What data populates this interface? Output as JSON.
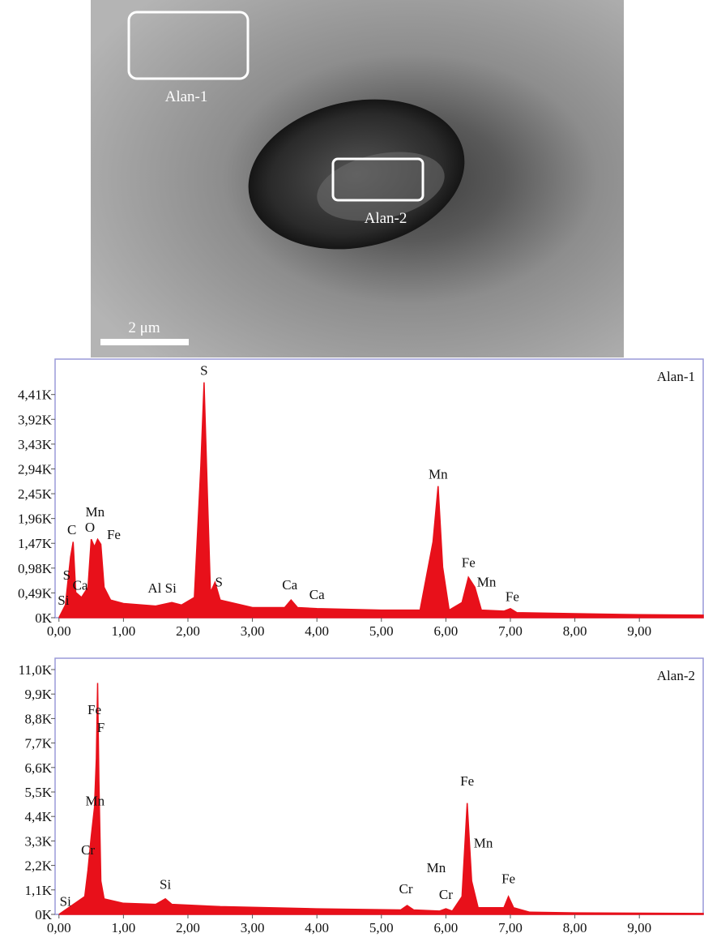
{
  "image": {
    "regions": [
      {
        "label": "Alan-1"
      },
      {
        "label": "Alan-2"
      }
    ],
    "scale_bar": "2 μm"
  },
  "chart_data": [
    {
      "type": "area",
      "label": "Alan-1",
      "color": "#e8101a",
      "x": [
        0,
        0.1,
        0.18,
        0.22,
        0.26,
        0.35,
        0.45,
        0.5,
        0.55,
        0.6,
        0.65,
        0.7,
        0.8,
        1.0,
        1.5,
        1.75,
        1.9,
        2.1,
        2.2,
        2.25,
        2.3,
        2.35,
        2.42,
        2.5,
        3.0,
        3.5,
        3.6,
        3.7,
        4.0,
        5.0,
        5.6,
        5.8,
        5.88,
        5.95,
        6.05,
        6.25,
        6.35,
        6.45,
        6.55,
        6.9,
        7.0,
        7.1,
        8.0,
        9.0,
        9.99
      ],
      "values": [
        0,
        250,
        1200,
        1500,
        500,
        400,
        600,
        1550,
        1400,
        1550,
        1450,
        600,
        350,
        280,
        230,
        300,
        250,
        400,
        3000,
        4650,
        2500,
        500,
        700,
        350,
        200,
        200,
        350,
        200,
        180,
        150,
        150,
        1500,
        2600,
        1000,
        150,
        300,
        800,
        600,
        150,
        130,
        180,
        100,
        80,
        60,
        50
      ],
      "xlim": [
        -0.06,
        9.99
      ],
      "ylim": [
        0,
        5110
      ],
      "xticks": [
        {
          "value": 0,
          "label": "0,00"
        },
        {
          "value": 1,
          "label": "1,00"
        },
        {
          "value": 2,
          "label": "2,00"
        },
        {
          "value": 3,
          "label": "3,00"
        },
        {
          "value": 4,
          "label": "4,00"
        },
        {
          "value": 5,
          "label": "5,00"
        },
        {
          "value": 6,
          "label": "6,00"
        },
        {
          "value": 7,
          "label": "7,00"
        },
        {
          "value": 8,
          "label": "8,00"
        },
        {
          "value": 9,
          "label": "9,00"
        }
      ],
      "yticks": [
        {
          "value": 0,
          "label": "0K"
        },
        {
          "value": 490,
          "label": "0,49K"
        },
        {
          "value": 980,
          "label": "0,98K"
        },
        {
          "value": 1470,
          "label": "1,47K"
        },
        {
          "value": 1960,
          "label": "1,96K"
        },
        {
          "value": 2450,
          "label": "2,45K"
        },
        {
          "value": 2940,
          "label": "2,94K"
        },
        {
          "value": 3430,
          "label": "3,43K"
        },
        {
          "value": 3920,
          "label": "3,92K"
        },
        {
          "value": 4410,
          "label": "4,41K"
        }
      ],
      "annotations": [
        {
          "text": "S",
          "x": 2.25,
          "y": 4800
        },
        {
          "text": "Mn",
          "x": 5.88,
          "y": 2750
        },
        {
          "text": "C",
          "x": 0.2,
          "y": 1650
        },
        {
          "text": "O",
          "x": 0.48,
          "y": 1700
        },
        {
          "text": "Mn",
          "x": 0.56,
          "y": 2000
        },
        {
          "text": "Fe",
          "x": 0.85,
          "y": 1550
        },
        {
          "text": "S",
          "x": 0.12,
          "y": 750
        },
        {
          "text": "Si",
          "x": 0.07,
          "y": 260
        },
        {
          "text": "Ca",
          "x": 0.33,
          "y": 550
        },
        {
          "text": "Al Si",
          "x": 1.6,
          "y": 500
        },
        {
          "text": "S",
          "x": 2.48,
          "y": 620
        },
        {
          "text": "Ca",
          "x": 3.58,
          "y": 560
        },
        {
          "text": "Ca",
          "x": 4.0,
          "y": 370
        },
        {
          "text": "Fe",
          "x": 6.35,
          "y": 1000
        },
        {
          "text": "Mn",
          "x": 6.63,
          "y": 620
        },
        {
          "text": "Fe",
          "x": 7.03,
          "y": 330
        }
      ]
    },
    {
      "type": "area",
      "label": "Alan-2",
      "color": "#e8101a",
      "x": [
        0,
        0.2,
        0.4,
        0.45,
        0.5,
        0.55,
        0.58,
        0.6,
        0.62,
        0.65,
        0.7,
        1.0,
        1.5,
        1.65,
        1.75,
        2.5,
        4.0,
        5.3,
        5.4,
        5.5,
        5.9,
        6.0,
        6.1,
        6.25,
        6.33,
        6.4,
        6.5,
        6.9,
        6.97,
        7.05,
        7.3,
        8.0,
        9.99
      ],
      "values": [
        0,
        400,
        800,
        2000,
        3500,
        4800,
        7000,
        10400,
        6000,
        1500,
        700,
        500,
        450,
        700,
        450,
        350,
        250,
        200,
        400,
        200,
        150,
        250,
        150,
        800,
        5000,
        1500,
        300,
        300,
        800,
        300,
        100,
        70,
        40
      ],
      "xlim": [
        -0.06,
        9.99
      ],
      "ylim": [
        0,
        11510
      ],
      "xticks": [
        {
          "value": 0,
          "label": "0,00"
        },
        {
          "value": 1,
          "label": "1,00"
        },
        {
          "value": 2,
          "label": "2,00"
        },
        {
          "value": 3,
          "label": "3,00"
        },
        {
          "value": 4,
          "label": "4,00"
        },
        {
          "value": 5,
          "label": "5,00"
        },
        {
          "value": 6,
          "label": "6,00"
        },
        {
          "value": 7,
          "label": "7,00"
        },
        {
          "value": 8,
          "label": "8,00"
        },
        {
          "value": 9,
          "label": "9,00"
        }
      ],
      "yticks": [
        {
          "value": 0,
          "label": "0K"
        },
        {
          "value": 1100,
          "label": "1,1K"
        },
        {
          "value": 2200,
          "label": "2,2K"
        },
        {
          "value": 3300,
          "label": "3,3K"
        },
        {
          "value": 4400,
          "label": "4,4K"
        },
        {
          "value": 5500,
          "label": "5,5K"
        },
        {
          "value": 6600,
          "label": "6,6K"
        },
        {
          "value": 7700,
          "label": "7,7K"
        },
        {
          "value": 8800,
          "label": "8,8K"
        },
        {
          "value": 9900,
          "label": "9,9K"
        },
        {
          "value": 11000,
          "label": "11,0K"
        }
      ],
      "annotations": [
        {
          "text": "Fe",
          "x": 0.55,
          "y": 9000
        },
        {
          "text": "F",
          "x": 0.65,
          "y": 8200
        },
        {
          "text": "Mn",
          "x": 0.56,
          "y": 4900
        },
        {
          "text": "Cr",
          "x": 0.45,
          "y": 2700
        },
        {
          "text": "Si",
          "x": 0.1,
          "y": 380
        },
        {
          "text": "Si",
          "x": 1.65,
          "y": 1150
        },
        {
          "text": "Cr",
          "x": 5.38,
          "y": 950
        },
        {
          "text": "Mn",
          "x": 5.85,
          "y": 1900
        },
        {
          "text": "Cr",
          "x": 6.0,
          "y": 700
        },
        {
          "text": "Fe",
          "x": 6.33,
          "y": 5800
        },
        {
          "text": "Mn",
          "x": 6.58,
          "y": 3000
        },
        {
          "text": "Fe",
          "x": 6.97,
          "y": 1400
        }
      ]
    }
  ]
}
